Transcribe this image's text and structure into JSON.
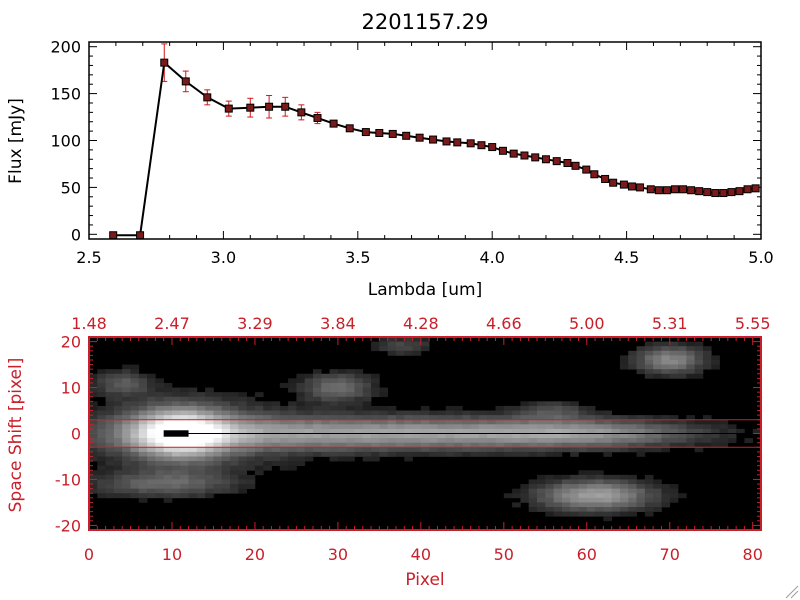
{
  "chart_data": [
    {
      "type": "line",
      "title": "2201157.29",
      "xlabel": "Lambda [um]",
      "ylabel": "Flux [mJy]",
      "xlim": [
        2.5,
        5.0
      ],
      "ylim": [
        -5,
        205
      ],
      "x_ticks": [
        2.5,
        3.0,
        3.5,
        4.0,
        4.5,
        5.0
      ],
      "x_tick_labels": [
        "2.5",
        "3.0",
        "3.5",
        "4.0",
        "4.5",
        "5.0"
      ],
      "y_ticks": [
        0,
        50,
        100,
        150,
        200
      ],
      "y_tick_labels": [
        "0",
        "50",
        "100",
        "150",
        "200"
      ],
      "colors": {
        "line": "#000000",
        "marker": "#7a1a1a",
        "error_bar": "#d01818",
        "axes": "#000000"
      },
      "series": [
        {
          "x": [
            2.59,
            2.69,
            2.78,
            2.86,
            2.94,
            3.02,
            3.1,
            3.17,
            3.23,
            3.29,
            3.35,
            3.41,
            3.47,
            3.53,
            3.58,
            3.63,
            3.68,
            3.73,
            3.78,
            3.83,
            3.87,
            3.92,
            3.96,
            4.0,
            4.04,
            4.08,
            4.12,
            4.16,
            4.2,
            4.24,
            4.28,
            4.31,
            4.35,
            4.38,
            4.42,
            4.45,
            4.49,
            4.52,
            4.55,
            4.59,
            4.62,
            4.65,
            4.68,
            4.71,
            4.74,
            4.77,
            4.8,
            4.83,
            4.86,
            4.89,
            4.92,
            4.95,
            4.98
          ],
          "y": [
            -1,
            -1,
            183,
            163,
            146,
            134,
            135,
            136,
            136,
            130,
            124,
            118,
            113,
            109,
            108,
            107,
            105,
            103,
            101,
            99,
            98,
            97,
            95,
            93,
            89,
            86,
            84,
            82,
            80,
            78,
            76,
            73,
            69,
            64,
            59,
            55,
            53,
            51,
            50,
            48,
            47,
            47,
            48,
            48,
            47,
            46,
            45,
            44,
            44,
            45,
            46,
            48,
            49
          ],
          "error": [
            0,
            0,
            20,
            11,
            8,
            8,
            10,
            12,
            10,
            8,
            6,
            3,
            2,
            2,
            1,
            1,
            1,
            1,
            1,
            1,
            1,
            1,
            1,
            1,
            1,
            1,
            1,
            1,
            1,
            1,
            1,
            1,
            1,
            1,
            1,
            1,
            1,
            1,
            1,
            1,
            1,
            1,
            1,
            1,
            1,
            1,
            1,
            1,
            1,
            1,
            1,
            1,
            1
          ]
        }
      ]
    },
    {
      "type": "heatmap",
      "xlabel": "Pixel",
      "ylabel": "Space Shift [pixel]",
      "xlim": [
        0,
        81
      ],
      "ylim": [
        -21,
        21
      ],
      "x_ticks": [
        0,
        10,
        20,
        30,
        40,
        50,
        60,
        70,
        80
      ],
      "x_tick_labels": [
        "0",
        "10",
        "20",
        "30",
        "40",
        "50",
        "60",
        "70",
        "80"
      ],
      "y_ticks": [
        -20,
        -10,
        0,
        10,
        20
      ],
      "y_tick_labels": [
        "-20",
        "-10",
        "0",
        "10",
        "20"
      ],
      "top_axis_values": [
        0,
        10,
        20,
        30,
        40,
        50,
        60,
        70,
        80
      ],
      "top_axis_labels": [
        "1.48",
        "2.47",
        "3.29",
        "3.84",
        "4.28",
        "4.66",
        "5.00",
        "5.31",
        "5.55"
      ],
      "colormap": "grayscale",
      "colors": {
        "axes": "#c8202a",
        "extraction_lines": "#d02020",
        "trace_line": "#000000"
      },
      "extraction_aperture": [
        -3,
        3
      ],
      "trace_y": 0,
      "masked_box": {
        "x": [
          9,
          12
        ],
        "y": [
          -0.7,
          0.7
        ]
      },
      "components": [
        {
          "name": "source-core",
          "x": 11,
          "y": 0,
          "sx": 3.8,
          "sy": 3.5,
          "amp": 0.9
        },
        {
          "name": "source-tail",
          "x": 35,
          "y": 0,
          "sx": 20,
          "sy": 2.6,
          "amp": 0.55
        },
        {
          "name": "source-tail-far",
          "x": 60,
          "y": 0,
          "sx": 9,
          "sy": 2.0,
          "amp": 0.3
        },
        {
          "name": "halo",
          "x": 12,
          "y": 0,
          "sx": 9,
          "sy": 6,
          "amp": 0.22
        },
        {
          "name": "blob-lower-right",
          "x": 61,
          "y": -13.5,
          "sx": 5,
          "sy": 2.4,
          "amp": 0.55
        },
        {
          "name": "blob-upper-right",
          "x": 70,
          "y": 16,
          "sx": 3,
          "sy": 2.2,
          "amp": 0.45
        },
        {
          "name": "blob-upper-mid",
          "x": 30,
          "y": 10,
          "sx": 3,
          "sy": 2.2,
          "amp": 0.35
        },
        {
          "name": "blob-lower-left",
          "x": 9,
          "y": -11,
          "sx": 6,
          "sy": 2.0,
          "amp": 0.3
        },
        {
          "name": "blob-upper-left",
          "x": 4,
          "y": 11,
          "sx": 2.5,
          "sy": 2.0,
          "amp": 0.25
        },
        {
          "name": "blob-top-mid",
          "x": 38,
          "y": 19,
          "sx": 2.5,
          "sy": 1.5,
          "amp": 0.2
        },
        {
          "name": "blob-mid-right",
          "x": 56,
          "y": 5,
          "sx": 3,
          "sy": 1.5,
          "amp": 0.2
        }
      ]
    }
  ]
}
